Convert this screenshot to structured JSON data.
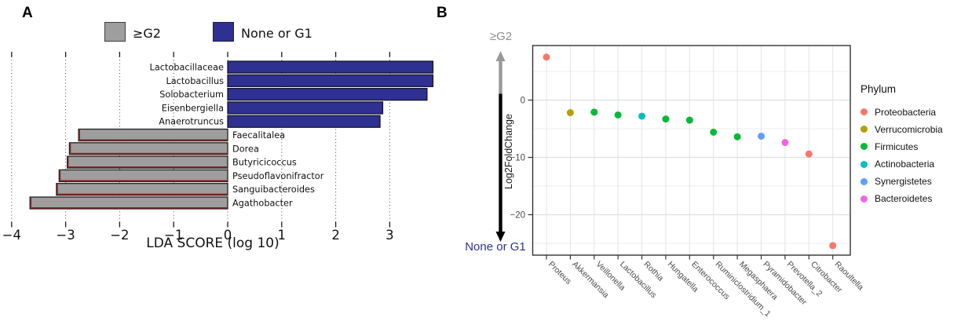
{
  "panels": {
    "a": "A",
    "b": "B"
  },
  "colors": {
    "bar_blue": "#2E3192",
    "bar_gray": "#9E9E9E",
    "bar_gray_edge": "#8c2626",
    "arrow_gray": "#999999",
    "arrow_blue": "#2E3192"
  },
  "chart_data": [
    {
      "type": "bar",
      "orientation": "horizontal",
      "xlabel": "LDA SCORE (log 10)",
      "xlim": [
        -4.15,
        3.85
      ],
      "xticks": [
        -4,
        -3,
        -2,
        -1,
        0,
        1,
        2,
        3
      ],
      "grid": "dotted-vertical",
      "legend": [
        {
          "label": "≥G2",
          "color": "#9E9E9E"
        },
        {
          "label": "None or G1",
          "color": "#2E3192"
        }
      ],
      "bars": [
        {
          "taxon": "Lactobacillaceae",
          "value": 3.8,
          "group": "None or G1"
        },
        {
          "taxon": "Lactobacillus",
          "value": 3.8,
          "group": "None or G1"
        },
        {
          "taxon": "Solobacterium",
          "value": 3.69,
          "group": "None or G1"
        },
        {
          "taxon": "Eisenbergiella",
          "value": 2.87,
          "group": "None or G1"
        },
        {
          "taxon": "Anaerotruncus",
          "value": 2.82,
          "group": "None or G1"
        },
        {
          "taxon": "Faecalitalea",
          "value": -2.76,
          "group": "≥G2"
        },
        {
          "taxon": "Dorea",
          "value": -2.93,
          "group": "≥G2"
        },
        {
          "taxon": "Butyricicoccus",
          "value": -2.97,
          "group": "≥G2"
        },
        {
          "taxon": "Pseudoflavonifractor",
          "value": -3.12,
          "group": "≥G2"
        },
        {
          "taxon": "Sanguibacteroides",
          "value": -3.17,
          "group": "≥G2"
        },
        {
          "taxon": "Agathobacter",
          "value": -3.66,
          "group": "≥G2"
        }
      ]
    },
    {
      "type": "scatter",
      "ylabel": "Log2FoldChange",
      "yticks": [
        0,
        -10,
        -20
      ],
      "yticks_minor": [
        5,
        -5,
        -15,
        -25
      ],
      "ylim": [
        -27,
        9.5
      ],
      "top_annotation": "≥G2",
      "bottom_annotation": "None or G1",
      "legend_title": "Phylum",
      "legend_position": "right",
      "phyla": [
        {
          "name": "Proteobacteria",
          "color": "#F8766D"
        },
        {
          "name": "Verrucomicrobia",
          "color": "#B79F00"
        },
        {
          "name": "Firmicutes",
          "color": "#00BA38"
        },
        {
          "name": "Actinobacteria",
          "color": "#00BFC4"
        },
        {
          "name": "Synergistetes",
          "color": "#619CFF"
        },
        {
          "name": "Bacteroidetes",
          "color": "#F564E3"
        }
      ],
      "points": [
        {
          "genus": "Proteus",
          "log2fc": 7.5,
          "phylum": "Proteobacteria"
        },
        {
          "genus": "Akkermansia",
          "log2fc": -2.2,
          "phylum": "Verrucomicrobia"
        },
        {
          "genus": "Veillonella",
          "log2fc": -2.1,
          "phylum": "Firmicutes"
        },
        {
          "genus": "Lactobacillus",
          "log2fc": -2.6,
          "phylum": "Firmicutes"
        },
        {
          "genus": "Rothia",
          "log2fc": -2.8,
          "phylum": "Actinobacteria"
        },
        {
          "genus": "Hungatella",
          "log2fc": -3.3,
          "phylum": "Firmicutes"
        },
        {
          "genus": "Enterococcus",
          "log2fc": -3.5,
          "phylum": "Firmicutes"
        },
        {
          "genus": "Ruminiclostridium_1",
          "log2fc": -5.6,
          "phylum": "Firmicutes"
        },
        {
          "genus": "Megasphaera",
          "log2fc": -6.4,
          "phylum": "Firmicutes"
        },
        {
          "genus": "Pyramidobacter",
          "log2fc": -6.3,
          "phylum": "Synergistetes"
        },
        {
          "genus": "Prevotella_2",
          "log2fc": -7.4,
          "phylum": "Bacteroidetes"
        },
        {
          "genus": "Citrobacter",
          "log2fc": -9.4,
          "phylum": "Proteobacteria"
        },
        {
          "genus": "Raoultella",
          "log2fc": -25.4,
          "phylum": "Proteobacteria"
        }
      ]
    }
  ]
}
